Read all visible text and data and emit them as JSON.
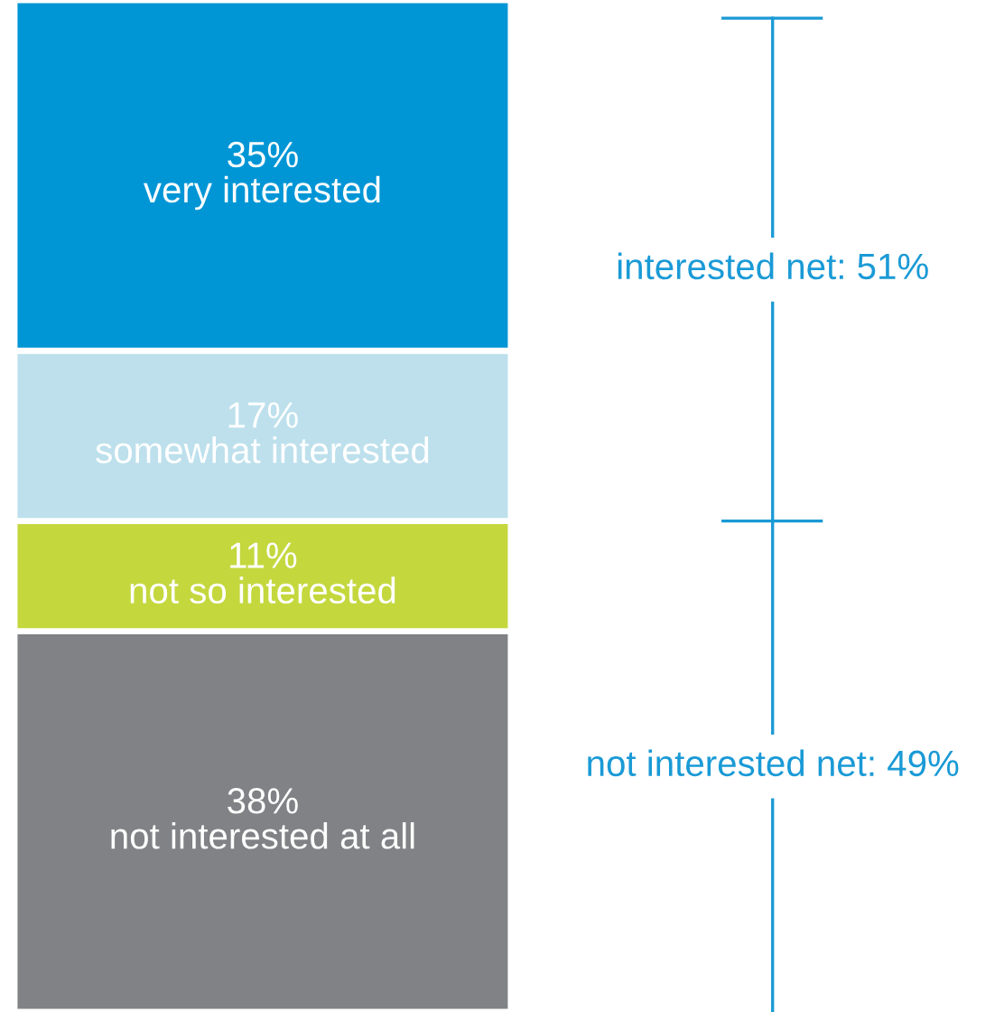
{
  "chart_data": {
    "type": "bar",
    "stacked": true,
    "tick_labels": false,
    "categories": [
      null
    ],
    "series": [
      {
        "name": "not interested at all",
        "color": "#808285",
        "values": [
          38
        ],
        "value_labels": [
          "38%"
        ]
      },
      {
        "name": "not so interested",
        "color": "#c4d83e",
        "values": [
          11
        ],
        "value_labels": [
          "11%"
        ]
      },
      {
        "name": "somewhat interested",
        "color": "#bde0ec",
        "values": [
          17
        ],
        "value_labels": [
          "17%"
        ]
      },
      {
        "name": "very interested",
        "color": "#0096d6",
        "values": [
          35
        ],
        "value_labels": [
          "35%"
        ]
      }
    ],
    "annotations": [
      "interested net: 51%",
      "not interested net: 49%"
    ]
  }
}
